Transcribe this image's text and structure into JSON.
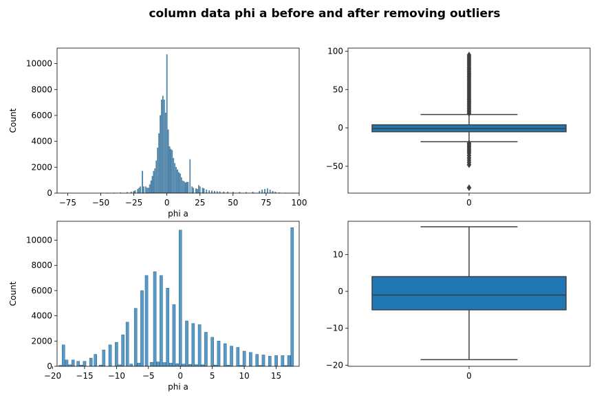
{
  "figure": {
    "title": "column data phi a before and after removing outliers"
  },
  "chart_data": [
    {
      "type": "bar",
      "kind": "histogram",
      "title": "",
      "xlabel": "phi a",
      "ylabel": "Count",
      "xlim": [
        -83,
        100
      ],
      "ylim": [
        0,
        11200
      ],
      "xticks": [
        -75,
        -50,
        -25,
        0,
        25,
        50,
        75,
        100
      ],
      "yticks": [
        0,
        2000,
        4000,
        6000,
        8000,
        10000
      ],
      "color": "#1f77b4",
      "bars": [
        {
          "x": -78,
          "y": 10
        },
        {
          "x": -50,
          "y": 10
        },
        {
          "x": -45,
          "y": 15
        },
        {
          "x": -40,
          "y": 20
        },
        {
          "x": -35,
          "y": 30
        },
        {
          "x": -30,
          "y": 60
        },
        {
          "x": -27,
          "y": 100
        },
        {
          "x": -25,
          "y": 150
        },
        {
          "x": -24,
          "y": 200
        },
        {
          "x": -22,
          "y": 300
        },
        {
          "x": -21,
          "y": 400
        },
        {
          "x": -20,
          "y": 500
        },
        {
          "x": -18.5,
          "y": 1700
        },
        {
          "x": -17.5,
          "y": 500
        },
        {
          "x": -16,
          "y": 500
        },
        {
          "x": -15,
          "y": 400
        },
        {
          "x": -14,
          "y": 400
        },
        {
          "x": -13,
          "y": 650
        },
        {
          "x": -12,
          "y": 950
        },
        {
          "x": -11,
          "y": 1300
        },
        {
          "x": -10,
          "y": 1700
        },
        {
          "x": -9,
          "y": 1900
        },
        {
          "x": -8,
          "y": 2500
        },
        {
          "x": -7,
          "y": 3500
        },
        {
          "x": -6,
          "y": 4600
        },
        {
          "x": -5,
          "y": 6000
        },
        {
          "x": -4,
          "y": 7200
        },
        {
          "x": -3,
          "y": 7500
        },
        {
          "x": -2,
          "y": 7200
        },
        {
          "x": -1,
          "y": 6200
        },
        {
          "x": 0,
          "y": 10700
        },
        {
          "x": 1,
          "y": 4900
        },
        {
          "x": 2,
          "y": 3600
        },
        {
          "x": 3,
          "y": 3400
        },
        {
          "x": 4,
          "y": 3300
        },
        {
          "x": 5,
          "y": 2700
        },
        {
          "x": 6,
          "y": 2300
        },
        {
          "x": 7,
          "y": 2000
        },
        {
          "x": 8,
          "y": 1800
        },
        {
          "x": 9,
          "y": 1600
        },
        {
          "x": 10,
          "y": 1500
        },
        {
          "x": 11,
          "y": 1200
        },
        {
          "x": 12,
          "y": 950
        },
        {
          "x": 13,
          "y": 900
        },
        {
          "x": 14,
          "y": 800
        },
        {
          "x": 15,
          "y": 850
        },
        {
          "x": 16,
          "y": 850
        },
        {
          "x": 17.5,
          "y": 2600
        },
        {
          "x": 19,
          "y": 500
        },
        {
          "x": 20,
          "y": 400
        },
        {
          "x": 22,
          "y": 350
        },
        {
          "x": 23,
          "y": 300
        },
        {
          "x": 24,
          "y": 600
        },
        {
          "x": 25,
          "y": 500
        },
        {
          "x": 27,
          "y": 400
        },
        {
          "x": 28,
          "y": 350
        },
        {
          "x": 30,
          "y": 250
        },
        {
          "x": 32,
          "y": 200
        },
        {
          "x": 34,
          "y": 180
        },
        {
          "x": 36,
          "y": 150
        },
        {
          "x": 38,
          "y": 130
        },
        {
          "x": 40,
          "y": 120
        },
        {
          "x": 43,
          "y": 100
        },
        {
          "x": 46,
          "y": 90
        },
        {
          "x": 50,
          "y": 80
        },
        {
          "x": 55,
          "y": 70
        },
        {
          "x": 60,
          "y": 60
        },
        {
          "x": 65,
          "y": 80
        },
        {
          "x": 70,
          "y": 150
        },
        {
          "x": 72,
          "y": 250
        },
        {
          "x": 74,
          "y": 300
        },
        {
          "x": 76,
          "y": 350
        },
        {
          "x": 78,
          "y": 250
        },
        {
          "x": 80,
          "y": 150
        },
        {
          "x": 82,
          "y": 80
        },
        {
          "x": 85,
          "y": 40
        },
        {
          "x": 90,
          "y": 20
        },
        {
          "x": 95,
          "y": 10
        }
      ]
    },
    {
      "type": "boxplot",
      "title": "",
      "xlabel": "",
      "ylabel": "",
      "ylim": [
        -85,
        104
      ],
      "yticks": [
        -50,
        0,
        50,
        100
      ],
      "xticks": [
        "0"
      ],
      "color": "#1f77b4",
      "box": {
        "q1": -5,
        "median": -1,
        "q3": 4,
        "whisker_low": -18,
        "whisker_high": 17.5
      },
      "fliers": [
        -78,
        -48,
        -45,
        -42,
        -39,
        -36,
        -33,
        -31,
        -29,
        -27,
        -25,
        -23,
        -21,
        -20,
        19,
        21,
        23,
        25,
        27,
        29,
        31,
        33,
        35,
        37,
        39,
        41,
        43,
        45,
        47,
        49,
        51,
        53,
        55,
        57,
        59,
        61,
        63,
        65,
        67,
        69,
        71,
        73,
        75,
        77,
        79,
        81,
        83,
        85,
        87,
        89,
        91,
        93,
        95
      ]
    },
    {
      "type": "bar",
      "kind": "histogram",
      "title": "",
      "xlabel": "phi a",
      "ylabel": "Count",
      "xlim": [
        -19.3,
        18.6
      ],
      "ylim": [
        0,
        11500
      ],
      "xticks": [
        -20,
        -15,
        -10,
        -5,
        0,
        5,
        10,
        15
      ],
      "yticks": [
        0,
        2000,
        4000,
        6000,
        8000,
        10000
      ],
      "color": "#1f77b4",
      "bars": [
        {
          "x": -18.3,
          "y": 1700
        },
        {
          "x": -17.8,
          "y": 500
        },
        {
          "x": -16.8,
          "y": 500
        },
        {
          "x": -16.0,
          "y": 400
        },
        {
          "x": -15.0,
          "y": 400
        },
        {
          "x": -14.0,
          "y": 650
        },
        {
          "x": -13.3,
          "y": 950
        },
        {
          "x": -12.0,
          "y": 1300
        },
        {
          "x": -11.0,
          "y": 1700
        },
        {
          "x": -10.0,
          "y": 1900
        },
        {
          "x": -9.0,
          "y": 2500
        },
        {
          "x": -8.3,
          "y": 3500
        },
        {
          "x": -7.0,
          "y": 4600
        },
        {
          "x": -6.0,
          "y": 6000
        },
        {
          "x": -5.3,
          "y": 7200
        },
        {
          "x": -4.0,
          "y": 7500
        },
        {
          "x": -3.0,
          "y": 7200
        },
        {
          "x": -2.0,
          "y": 6200
        },
        {
          "x": -1.0,
          "y": 4900
        },
        {
          "x": 0.0,
          "y": 10800
        },
        {
          "x": 1.0,
          "y": 3600
        },
        {
          "x": 2.0,
          "y": 3400
        },
        {
          "x": 3.0,
          "y": 3300
        },
        {
          "x": 4.0,
          "y": 2700
        },
        {
          "x": 5.0,
          "y": 2300
        },
        {
          "x": 6.0,
          "y": 2000
        },
        {
          "x": 7.0,
          "y": 1800
        },
        {
          "x": 8.0,
          "y": 1600
        },
        {
          "x": 9.0,
          "y": 1500
        },
        {
          "x": 10.0,
          "y": 1200
        },
        {
          "x": 11.0,
          "y": 1100
        },
        {
          "x": 12.0,
          "y": 950
        },
        {
          "x": 13.0,
          "y": 900
        },
        {
          "x": 14.0,
          "y": 800
        },
        {
          "x": 15.0,
          "y": 850
        },
        {
          "x": 16.0,
          "y": 850
        },
        {
          "x": 17.0,
          "y": 850
        },
        {
          "x": 17.5,
          "y": 11000
        },
        {
          "x": -18.8,
          "y": 80
        },
        {
          "x": -17.3,
          "y": 120
        },
        {
          "x": -15.5,
          "y": 100
        },
        {
          "x": -12.5,
          "y": 100
        },
        {
          "x": -9.5,
          "y": 120
        },
        {
          "x": -7.7,
          "y": 180
        },
        {
          "x": -6.5,
          "y": 250
        },
        {
          "x": -4.5,
          "y": 320
        },
        {
          "x": -3.5,
          "y": 350
        },
        {
          "x": -2.5,
          "y": 300
        },
        {
          "x": -1.5,
          "y": 250
        },
        {
          "x": -0.5,
          "y": 200
        },
        {
          "x": 0.5,
          "y": 180
        },
        {
          "x": 1.5,
          "y": 150
        },
        {
          "x": 2.5,
          "y": 130
        },
        {
          "x": 3.5,
          "y": 120
        },
        {
          "x": 5.5,
          "y": 100
        },
        {
          "x": 7.5,
          "y": 90
        },
        {
          "x": 9.5,
          "y": 80
        },
        {
          "x": 12.5,
          "y": 70
        },
        {
          "x": 16.5,
          "y": 60
        }
      ]
    },
    {
      "type": "boxplot",
      "title": "",
      "xlabel": "",
      "ylabel": "",
      "ylim": [
        -20.3,
        19
      ],
      "yticks": [
        -20,
        -10,
        0,
        10
      ],
      "xticks": [
        "0"
      ],
      "color": "#1f77b4",
      "box": {
        "q1": -5,
        "median": -1,
        "q3": 4,
        "whisker_low": -18.5,
        "whisker_high": 17.5
      },
      "fliers": []
    }
  ]
}
